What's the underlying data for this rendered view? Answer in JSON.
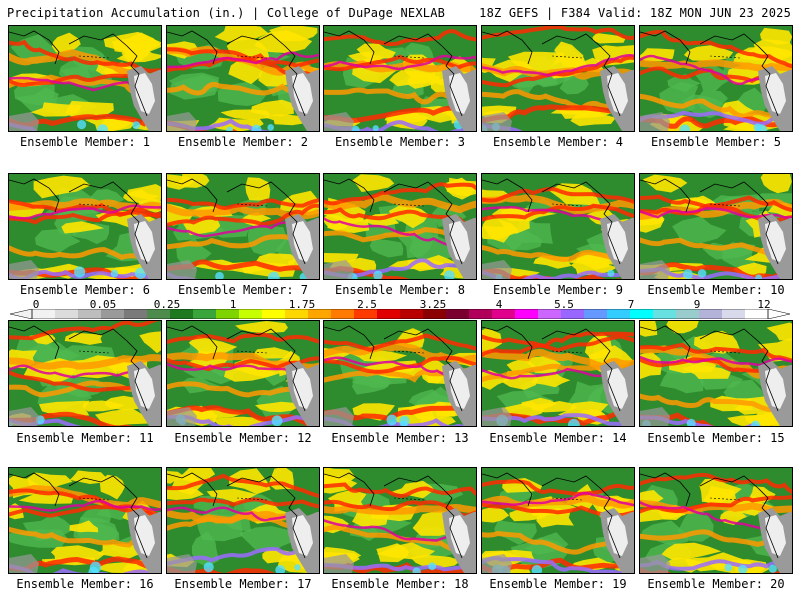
{
  "header": {
    "title": "Precipitation Accumulation (in.) | College of DuPage NEXLAB",
    "run_info": "18Z GEFS | F384 Valid: 18Z MON JUN 23 2025"
  },
  "panels": [
    {
      "caption": "Ensemble Member: 1"
    },
    {
      "caption": "Ensemble Member: 2"
    },
    {
      "caption": "Ensemble Member: 3"
    },
    {
      "caption": "Ensemble Member: 4"
    },
    {
      "caption": "Ensemble Member: 5"
    },
    {
      "caption": "Ensemble Member: 6"
    },
    {
      "caption": "Ensemble Member: 7"
    },
    {
      "caption": "Ensemble Member: 8"
    },
    {
      "caption": "Ensemble Member: 9"
    },
    {
      "caption": "Ensemble Member: 10"
    },
    {
      "caption": "Ensemble Member: 11"
    },
    {
      "caption": "Ensemble Member: 12"
    },
    {
      "caption": "Ensemble Member: 13"
    },
    {
      "caption": "Ensemble Member: 14"
    },
    {
      "caption": "Ensemble Member: 15"
    },
    {
      "caption": "Ensemble Member: 16"
    },
    {
      "caption": "Ensemble Member: 17"
    },
    {
      "caption": "Ensemble Member: 18"
    },
    {
      "caption": "Ensemble Member: 19"
    },
    {
      "caption": "Ensemble Member: 20"
    }
  ],
  "colorbar": {
    "labels": [
      "0",
      "0.05",
      "0.25",
      "1",
      "1.75",
      "2.5",
      "3.25",
      "4",
      "5.5",
      "7",
      "9",
      "12"
    ],
    "colors": [
      "#f2f2f2",
      "#dcdcdc",
      "#bdbdbd",
      "#9a9a9a",
      "#7a7a7a",
      "#4e8c4e",
      "#1f7a1f",
      "#3aa53a",
      "#7fd400",
      "#c8ff00",
      "#ffff00",
      "#ffd700",
      "#ffa500",
      "#ff7a00",
      "#ff3a00",
      "#e00000",
      "#b80000",
      "#8b0000",
      "#7a0030",
      "#b0005a",
      "#e0008c",
      "#ff00ff",
      "#cc66ff",
      "#9966ff",
      "#6699ff",
      "#33ccff",
      "#00ffff",
      "#66e0e0",
      "#99cccc",
      "#b3b3d9",
      "#d9d9ec",
      "#ffffff"
    ]
  },
  "map_colors": {
    "ocean_base": "#2e8b2e",
    "light_green": "#4fb84f",
    "yellow": "#ffe600",
    "orange": "#ff9900",
    "red": "#ff2a00",
    "dark_red": "#b00020",
    "magenta": "#e000a0",
    "purple": "#9b6bff",
    "cyan": "#55e0ff",
    "grey_land": "#9a9a9a",
    "white_land": "#f2f2f2"
  }
}
